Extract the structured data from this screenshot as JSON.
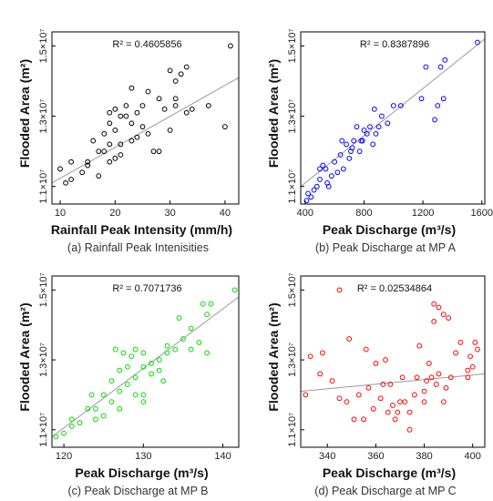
{
  "chart_data": [
    {
      "type": "scatter",
      "caption": "(a) Rainfall Peak Intenisities",
      "xlabel": "Rainfall Peak Intensity (mm/h)",
      "ylabel": "Flooded Area (m²)",
      "r2_label": "R² = 0.4605856",
      "point_color": "#000000",
      "xlim": [
        8.5,
        42.5
      ],
      "ylim": [
        10500000,
        15400000
      ],
      "xticks": [
        10,
        20,
        30,
        40
      ],
      "yticks": [
        11000000,
        13000000,
        15000000
      ],
      "ytick_labels": [
        "1.1×10⁷",
        "1.3×10⁷",
        "1.5×10⁷"
      ],
      "trend": [
        [
          8.5,
          11100000
        ],
        [
          42.5,
          14100000
        ]
      ],
      "points": [
        [
          41,
          15000000
        ],
        [
          40,
          12700000
        ],
        [
          37,
          13300000
        ],
        [
          34,
          13200000
        ],
        [
          33,
          14400000
        ],
        [
          33,
          13100000
        ],
        [
          32,
          14200000
        ],
        [
          31,
          14000000
        ],
        [
          30,
          14300000
        ],
        [
          31,
          13500000
        ],
        [
          31,
          13300000
        ],
        [
          30,
          12600000
        ],
        [
          29,
          13200000
        ],
        [
          28,
          13500000
        ],
        [
          28,
          12000000
        ],
        [
          27,
          12000000
        ],
        [
          26,
          13700000
        ],
        [
          26,
          12500000
        ],
        [
          25,
          13300000
        ],
        [
          25,
          12700000
        ],
        [
          24,
          13100000
        ],
        [
          24,
          12400000
        ],
        [
          23,
          13800000
        ],
        [
          23,
          12800000
        ],
        [
          23,
          12300000
        ],
        [
          22,
          13300000
        ],
        [
          22,
          13000000
        ],
        [
          21,
          13000000
        ],
        [
          21,
          12200000
        ],
        [
          21,
          11900000
        ],
        [
          20,
          13200000
        ],
        [
          20,
          12600000
        ],
        [
          20,
          11800000
        ],
        [
          19,
          13100000
        ],
        [
          19,
          12800000
        ],
        [
          19,
          12200000
        ],
        [
          19,
          11700000
        ],
        [
          18,
          12500000
        ],
        [
          18,
          12000000
        ],
        [
          17,
          12000000
        ],
        [
          17,
          11300000
        ],
        [
          16,
          12300000
        ],
        [
          15,
          11700000
        ],
        [
          15,
          11600000
        ],
        [
          14,
          11400000
        ],
        [
          12,
          11700000
        ],
        [
          12,
          11200000
        ],
        [
          11,
          11100000
        ],
        [
          10,
          11500000
        ]
      ]
    },
    {
      "type": "scatter",
      "caption": "(b) Peak Discharge at MP A",
      "xlabel": "Peak Discharge (m³/s)",
      "ylabel": "Flooded Area (m²)",
      "r2_label": "R² = 0.8387896",
      "point_color": "#0000ff",
      "xlim": [
        370,
        1620
      ],
      "ylim": [
        10500000,
        15400000
      ],
      "xticks": [
        400,
        800,
        1200,
        1600
      ],
      "yticks": [
        11000000,
        13000000,
        15000000
      ],
      "ytick_labels": [
        "1.1×10⁷",
        "1.3×10⁷",
        "1.5×10⁷"
      ],
      "trend": [
        [
          370,
          11000000
        ],
        [
          1620,
          15200000
        ]
      ],
      "points": [
        [
          1570,
          15100000
        ],
        [
          1350,
          14600000
        ],
        [
          1320,
          14400000
        ],
        [
          1220,
          14400000
        ],
        [
          1190,
          13500000
        ],
        [
          1340,
          13500000
        ],
        [
          1300,
          13300000
        ],
        [
          1280,
          12900000
        ],
        [
          1050,
          13300000
        ],
        [
          1000,
          13300000
        ],
        [
          960,
          12800000
        ],
        [
          920,
          13000000
        ],
        [
          900,
          12700000
        ],
        [
          880,
          12500000
        ],
        [
          870,
          13200000
        ],
        [
          860,
          12200000
        ],
        [
          840,
          12700000
        ],
        [
          820,
          12500000
        ],
        [
          800,
          12600000
        ],
        [
          790,
          12300000
        ],
        [
          780,
          12300000
        ],
        [
          770,
          12000000
        ],
        [
          750,
          12700000
        ],
        [
          730,
          12300000
        ],
        [
          710,
          12000000
        ],
        [
          700,
          11800000
        ],
        [
          680,
          12200000
        ],
        [
          660,
          11500000
        ],
        [
          650,
          12300000
        ],
        [
          640,
          11900000
        ],
        [
          620,
          11400000
        ],
        [
          600,
          11700000
        ],
        [
          580,
          11300000
        ],
        [
          560,
          11000000
        ],
        [
          540,
          11500000
        ],
        [
          520,
          11600000
        ],
        [
          500,
          11200000
        ],
        [
          480,
          11000000
        ],
        [
          460,
          10900000
        ],
        [
          440,
          10700000
        ],
        [
          420,
          10800000
        ],
        [
          410,
          10600000
        ],
        [
          500,
          11500000
        ],
        [
          550,
          11100000
        ],
        [
          720,
          12100000
        ]
      ]
    },
    {
      "type": "scatter",
      "caption": "(c) Peak Discharge at MP B",
      "xlabel": "Peak Discharge (m³/s)",
      "ylabel": "Flooded Area (m²)",
      "r2_label": "R² = 0.7071736",
      "point_color": "#00dd00",
      "xlim": [
        118.5,
        142
      ],
      "ylim": [
        10500000,
        15400000
      ],
      "xticks": [
        120,
        130,
        140
      ],
      "yticks": [
        11000000,
        13000000,
        15000000
      ],
      "ytick_labels": [
        "1.1×10⁷",
        "1.3×10⁷",
        "1.5×10⁷"
      ],
      "trend": [
        [
          118.5,
          10800000
        ],
        [
          142,
          14800000
        ]
      ],
      "points": [
        [
          141.5,
          15000000
        ],
        [
          138.5,
          14600000
        ],
        [
          137.5,
          14600000
        ],
        [
          138,
          14300000
        ],
        [
          137,
          13500000
        ],
        [
          138,
          13200000
        ],
        [
          136,
          13900000
        ],
        [
          136,
          13300000
        ],
        [
          135,
          13600000
        ],
        [
          134,
          13300000
        ],
        [
          133,
          13400000
        ],
        [
          133,
          13200000
        ],
        [
          132,
          12700000
        ],
        [
          132,
          13000000
        ],
        [
          131,
          12900000
        ],
        [
          131,
          12600000
        ],
        [
          130,
          12800000
        ],
        [
          130,
          13200000
        ],
        [
          130,
          12000000
        ],
        [
          130,
          11800000
        ],
        [
          129,
          13300000
        ],
        [
          129,
          12500000
        ],
        [
          129,
          12000000
        ],
        [
          128.5,
          13100000
        ],
        [
          128,
          12800000
        ],
        [
          128,
          12300000
        ],
        [
          127.5,
          13200000
        ],
        [
          127,
          12700000
        ],
        [
          127,
          12100000
        ],
        [
          127,
          11600000
        ],
        [
          126.5,
          13300000
        ],
        [
          126,
          12400000
        ],
        [
          126,
          11800000
        ],
        [
          125,
          12000000
        ],
        [
          125,
          11400000
        ],
        [
          124,
          11600000
        ],
        [
          124,
          11300000
        ],
        [
          123.5,
          12000000
        ],
        [
          123,
          11600000
        ],
        [
          122,
          11200000
        ],
        [
          121,
          11300000
        ],
        [
          121,
          11100000
        ],
        [
          120,
          10900000
        ],
        [
          119,
          10800000
        ],
        [
          132.5,
          12400000
        ],
        [
          134.5,
          14200000
        ]
      ]
    },
    {
      "type": "scatter",
      "caption": "(d) Peak Discharge at MP C",
      "xlabel": "Peak Discharge (m³/s)",
      "ylabel": "Flooded Area (m²)",
      "r2_label": "R² = 0.02534864",
      "point_color": "#ff0000",
      "xlim": [
        329,
        405
      ],
      "ylim": [
        10500000,
        15400000
      ],
      "xticks": [
        340,
        360,
        380,
        400
      ],
      "yticks": [
        11000000,
        13000000,
        15000000
      ],
      "ytick_labels": [
        "1.1×10⁷",
        "1.3×10⁷",
        "1.5×10⁷"
      ],
      "trend": [
        [
          329,
          12100000
        ],
        [
          405,
          12600000
        ]
      ],
      "points": [
        [
          345,
          15000000
        ],
        [
          384,
          14600000
        ],
        [
          386,
          14500000
        ],
        [
          388,
          14300000
        ],
        [
          384,
          14100000
        ],
        [
          390,
          14200000
        ],
        [
          395,
          13500000
        ],
        [
          401,
          13500000
        ],
        [
          402,
          13300000
        ],
        [
          399,
          13100000
        ],
        [
          400,
          12800000
        ],
        [
          398,
          12700000
        ],
        [
          398,
          12500000
        ],
        [
          393,
          13200000
        ],
        [
          391,
          12500000
        ],
        [
          389,
          12200000
        ],
        [
          388,
          11800000
        ],
        [
          386,
          12600000
        ],
        [
          385,
          12300000
        ],
        [
          383,
          12500000
        ],
        [
          382,
          12900000
        ],
        [
          381,
          12400000
        ],
        [
          380,
          12100000
        ],
        [
          380,
          11800000
        ],
        [
          378,
          13400000
        ],
        [
          377,
          12500000
        ],
        [
          376,
          12000000
        ],
        [
          374,
          11500000
        ],
        [
          374,
          11000000
        ],
        [
          372,
          11800000
        ],
        [
          371,
          12500000
        ],
        [
          370,
          11800000
        ],
        [
          369,
          11500000
        ],
        [
          368,
          11300000
        ],
        [
          367,
          11700000
        ],
        [
          366,
          12300000
        ],
        [
          365,
          11500000
        ],
        [
          364,
          13000000
        ],
        [
          363,
          12300000
        ],
        [
          362,
          11900000
        ],
        [
          360,
          12900000
        ],
        [
          359,
          11600000
        ],
        [
          357,
          12200000
        ],
        [
          356,
          13300000
        ],
        [
          355,
          11300000
        ],
        [
          353,
          12000000
        ],
        [
          351,
          11300000
        ],
        [
          349,
          13600000
        ],
        [
          348,
          11800000
        ],
        [
          345,
          11900000
        ],
        [
          342,
          12400000
        ],
        [
          338,
          13200000
        ],
        [
          333,
          13100000
        ],
        [
          337,
          12600000
        ],
        [
          331,
          12000000
        ]
      ]
    }
  ]
}
